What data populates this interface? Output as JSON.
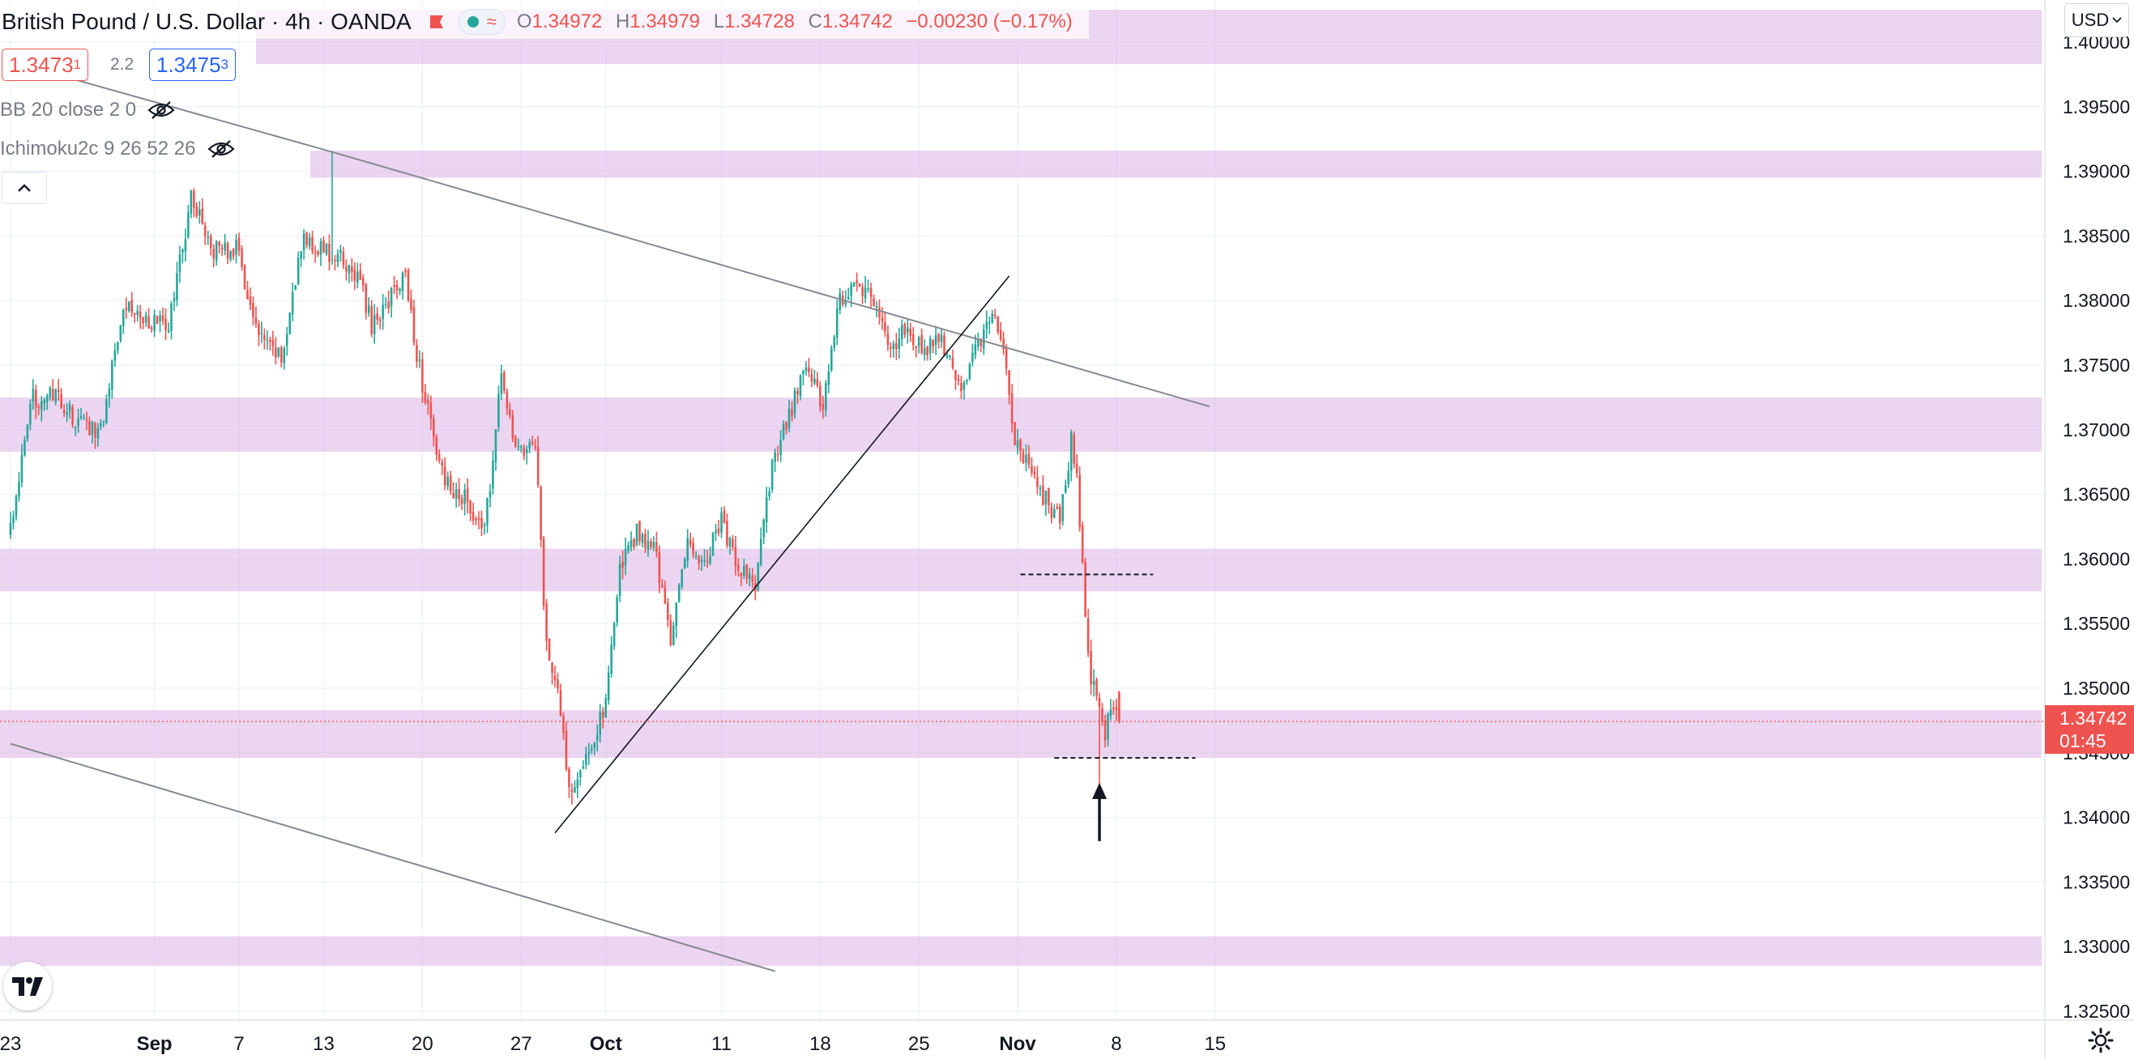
{
  "header": {
    "title": "British Pound / U.S. Dollar · 4h · OANDA",
    "ohlc": [
      {
        "k": "O",
        "v": "1.34972"
      },
      {
        "k": "H",
        "v": "1.34979"
      },
      {
        "k": "L",
        "v": "1.34728"
      },
      {
        "k": "C",
        "v": "1.34742"
      }
    ],
    "change": "−0.00230 (−0.17%)"
  },
  "trade": {
    "sell_main": "1.3473",
    "sell_sup": "1",
    "spread": "2.2",
    "buy_main": "1.3475",
    "buy_sup": "3"
  },
  "indicators": [
    {
      "label": "BB 20 close 2 0"
    },
    {
      "label": "Ichimoku2c 9 26 52 26"
    }
  ],
  "currency": "USD",
  "current_price": {
    "value": "1.34742",
    "countdown": "01:45"
  },
  "colors": {
    "up": "#26a69a",
    "down": "#ef5350",
    "zone": "#dab3e3",
    "line": "#868993"
  },
  "chart_data": {
    "type": "candlestick",
    "y_axis": {
      "ylim": [
        1.3225,
        1.4055
      ],
      "ticks": [
        "1.32500",
        "1.33000",
        "1.33500",
        "1.34000",
        "1.34500",
        "1.35000",
        "1.35500",
        "1.36000",
        "1.36500",
        "1.37000",
        "1.37500",
        "1.38000",
        "1.38500",
        "1.39000",
        "1.39500",
        "1.40000"
      ]
    },
    "x_axis": {
      "ticks": [
        {
          "label": "23",
          "bar": 0
        },
        {
          "label": "Sep",
          "bar": 51
        },
        {
          "label": "7",
          "bar": 81
        },
        {
          "label": "13",
          "bar": 111
        },
        {
          "label": "20",
          "bar": 146
        },
        {
          "label": "27",
          "bar": 181
        },
        {
          "label": "Oct",
          "bar": 211
        },
        {
          "label": "11",
          "bar": 252
        },
        {
          "label": "18",
          "bar": 287
        },
        {
          "label": "25",
          "bar": 322
        },
        {
          "label": "Nov",
          "bar": 357
        },
        {
          "label": "8",
          "bar": 392
        },
        {
          "label": "15",
          "bar": 427
        }
      ],
      "last_bar": 393
    },
    "zones": [
      [
        1.3983,
        1.4025
      ],
      [
        1.3895,
        1.3916
      ],
      [
        1.3683,
        1.3725
      ],
      [
        1.3575,
        1.3608
      ],
      [
        1.3446,
        1.3483
      ],
      [
        1.3285,
        1.3308
      ]
    ],
    "trend_lines": [
      {
        "from": [
          0,
          1.3985
        ],
        "to": [
          114,
          1.3915
        ],
        "to2": [
          425,
          1.3718
        ]
      },
      {
        "from": [
          0,
          1.3457
        ],
        "to": [
          271,
          1.3281
        ]
      },
      {
        "from": [
          193,
          1.3388
        ],
        "to": [
          354,
          1.3819
        ]
      }
    ],
    "dashed_levels": [
      {
        "price": 1.3588,
        "from_bar": 358,
        "to_bar": 405
      },
      {
        "price": 1.3446,
        "from_bar": 370,
        "to_bar": 420
      }
    ],
    "current_line": 1.34742,
    "anchors": [
      [
        0,
        1.3625
      ],
      [
        8,
        1.3725
      ],
      [
        16,
        1.3725
      ],
      [
        24,
        1.3705
      ],
      [
        32,
        1.37
      ],
      [
        40,
        1.38
      ],
      [
        48,
        1.3785
      ],
      [
        56,
        1.378
      ],
      [
        64,
        1.388
      ],
      [
        72,
        1.384
      ],
      [
        80,
        1.384
      ],
      [
        88,
        1.377
      ],
      [
        96,
        1.3755
      ],
      [
        104,
        1.385
      ],
      [
        110,
        1.384
      ],
      [
        118,
        1.383
      ],
      [
        124,
        1.3815
      ],
      [
        128,
        1.378
      ],
      [
        134,
        1.38
      ],
      [
        140,
        1.382
      ],
      [
        144,
        1.376
      ],
      [
        150,
        1.369
      ],
      [
        156,
        1.365
      ],
      [
        162,
        1.3645
      ],
      [
        168,
        1.362
      ],
      [
        174,
        1.374
      ],
      [
        180,
        1.368
      ],
      [
        186,
        1.369
      ],
      [
        190,
        1.353
      ],
      [
        194,
        1.35
      ],
      [
        198,
        1.342
      ],
      [
        204,
        1.345
      ],
      [
        210,
        1.348
      ],
      [
        216,
        1.359
      ],
      [
        222,
        1.362
      ],
      [
        228,
        1.361
      ],
      [
        234,
        1.354
      ],
      [
        240,
        1.361
      ],
      [
        246,
        1.36
      ],
      [
        252,
        1.363
      ],
      [
        258,
        1.359
      ],
      [
        264,
        1.358
      ],
      [
        270,
        1.367
      ],
      [
        276,
        1.371
      ],
      [
        282,
        1.375
      ],
      [
        288,
        1.372
      ],
      [
        294,
        1.38
      ],
      [
        300,
        1.3815
      ],
      [
        306,
        1.38
      ],
      [
        312,
        1.376
      ],
      [
        318,
        1.378
      ],
      [
        324,
        1.376
      ],
      [
        330,
        1.377
      ],
      [
        336,
        1.373
      ],
      [
        342,
        1.376
      ],
      [
        348,
        1.379
      ],
      [
        352,
        1.376
      ],
      [
        356,
        1.369
      ],
      [
        362,
        1.367
      ],
      [
        368,
        1.364
      ],
      [
        372,
        1.363
      ],
      [
        376,
        1.369
      ],
      [
        378,
        1.366
      ],
      [
        382,
        1.352
      ],
      [
        386,
        1.348
      ],
      [
        388,
        1.346
      ],
      [
        390,
        1.349
      ],
      [
        393,
        1.3474
      ]
    ],
    "markers": [
      {
        "type": "arrow-up",
        "bar": 386,
        "price": 1.3408
      }
    ]
  }
}
